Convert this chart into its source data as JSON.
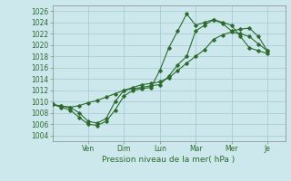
{
  "title": "Pression niveau de la mer( hPa )",
  "bg_color": "#cce8ec",
  "grid_color": "#aacdd4",
  "line_color": "#2d6a2d",
  "ylim": [
    1003,
    1027
  ],
  "yticks": [
    1004,
    1006,
    1008,
    1010,
    1012,
    1014,
    1016,
    1018,
    1020,
    1022,
    1024,
    1026
  ],
  "x_tick_positions": [
    2,
    4,
    6,
    8,
    10,
    12
  ],
  "x_tick_labels": [
    "Ven",
    "Dim",
    "Lun",
    "Mar",
    "Mer",
    "Je"
  ],
  "xlim": [
    0,
    13
  ],
  "series1_x": [
    0,
    0.5,
    1.0,
    1.5,
    2.0,
    2.5,
    3.0,
    3.5,
    4.0,
    4.5,
    5.0,
    5.5,
    6.0,
    6.5,
    7.0,
    7.5,
    8.0,
    8.5,
    9.0,
    9.5,
    10.0,
    10.5,
    11.0,
    11.5,
    12.0
  ],
  "series1_y": [
    1009.5,
    1009.2,
    1009.0,
    1009.3,
    1009.8,
    1010.2,
    1010.8,
    1011.4,
    1012.0,
    1012.5,
    1013.0,
    1013.2,
    1013.5,
    1014.2,
    1015.5,
    1016.8,
    1018.0,
    1019.2,
    1021.0,
    1021.8,
    1022.3,
    1022.0,
    1021.5,
    1020.2,
    1019.0
  ],
  "series2_x": [
    0,
    0.5,
    1.0,
    1.5,
    2.0,
    2.5,
    3.0,
    3.5,
    4.0,
    4.5,
    5.0,
    5.5,
    6.0,
    6.5,
    7.0,
    7.5,
    8.0,
    8.5,
    9.0,
    9.5,
    10.0,
    10.5,
    11.0,
    11.5,
    12.0
  ],
  "series2_y": [
    1009.5,
    1009.0,
    1008.5,
    1007.2,
    1006.0,
    1005.8,
    1006.5,
    1008.5,
    1011.0,
    1012.0,
    1012.3,
    1012.5,
    1015.5,
    1019.5,
    1022.5,
    1025.5,
    1023.5,
    1024.0,
    1024.5,
    1024.0,
    1023.5,
    1021.5,
    1019.5,
    1019.0,
    1018.5
  ],
  "series3_x": [
    0,
    0.5,
    1.0,
    1.5,
    2.0,
    2.5,
    3.0,
    3.5,
    4.0,
    4.5,
    5.0,
    5.5,
    6.0,
    6.5,
    7.0,
    7.5,
    8.0,
    8.5,
    9.0,
    9.5,
    10.0,
    10.5,
    11.0,
    11.5,
    12.0
  ],
  "series3_y": [
    1009.5,
    1009.2,
    1009.0,
    1008.0,
    1006.5,
    1006.2,
    1007.0,
    1010.0,
    1012.0,
    1012.3,
    1012.5,
    1012.8,
    1013.0,
    1014.5,
    1016.5,
    1018.0,
    1022.5,
    1023.5,
    1024.5,
    1023.8,
    1022.5,
    1022.8,
    1023.0,
    1021.5,
    1019.0
  ]
}
